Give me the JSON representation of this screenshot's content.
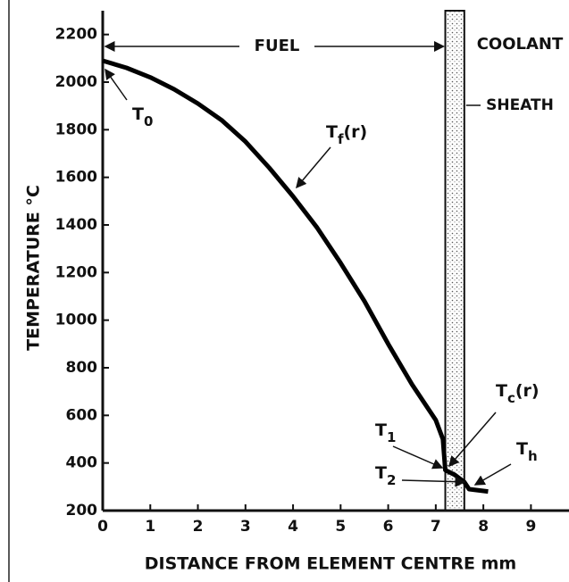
{
  "chart_data": {
    "type": "line",
    "xlabel": "DISTANCE FROM ELEMENT CENTRE mm",
    "ylabel": "TEMPERATURE °C",
    "x": [
      0,
      0.5,
      1,
      1.5,
      2,
      2.5,
      3,
      3.5,
      4,
      4.5,
      5,
      5.5,
      6,
      6.5,
      7,
      7.15,
      7.2,
      7.4,
      7.6,
      7.7,
      8.1
    ],
    "series": [
      {
        "color": "#000000",
        "values": [
          2090,
          2060,
          2020,
          1970,
          1910,
          1840,
          1750,
          1640,
          1520,
          1390,
          1240,
          1080,
          900,
          730,
          580,
          500,
          370,
          350,
          320,
          290,
          280
        ]
      }
    ],
    "xlim": [
      0,
      9.8
    ],
    "ylim": [
      200,
      2300
    ],
    "xticks": [
      0,
      1,
      2,
      3,
      4,
      5,
      6,
      7,
      8,
      9
    ],
    "yticks": [
      200,
      400,
      600,
      800,
      1000,
      1200,
      1400,
      1600,
      1800,
      2000,
      2200
    ],
    "sheath_range": [
      7.2,
      7.6
    ],
    "region_labels": {
      "fuel": "FUEL",
      "coolant": "COOLANT",
      "sheath": "SHEATH"
    },
    "annotations": [
      {
        "text": "T",
        "sub": "0"
      },
      {
        "text": "T",
        "sub": "f",
        "suffix": "(r)"
      },
      {
        "text": "T",
        "sub": "1"
      },
      {
        "text": "T",
        "sub": "2"
      },
      {
        "text": "T",
        "sub": "c",
        "suffix": "(r)"
      },
      {
        "text": "T",
        "sub": "h"
      }
    ]
  }
}
